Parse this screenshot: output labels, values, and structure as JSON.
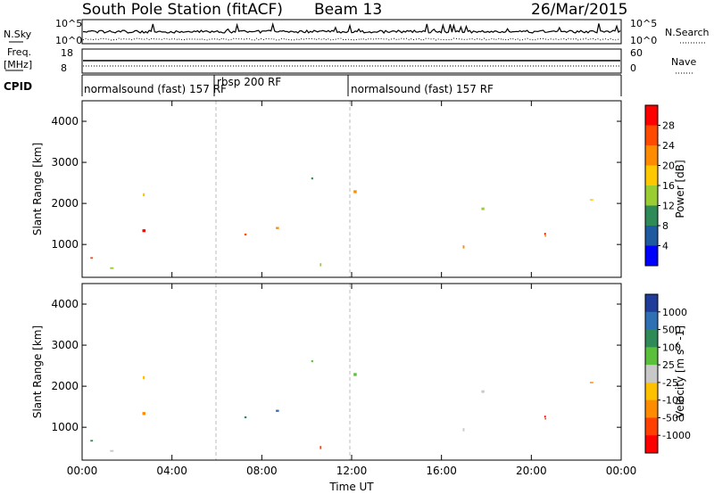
{
  "header": {
    "title": "South Pole Station (fitACF)",
    "beam": "Beam 13",
    "date": "26/Mar/2015"
  },
  "strip_nsky": {
    "label": "N.Sky",
    "ticks_left": [
      "10^5",
      "10^0"
    ],
    "right_label": "N.Search",
    "ticks_right": [
      "10^5",
      "10^0"
    ]
  },
  "strip_freq": {
    "label_line1": "Freq.",
    "label_line2": "[MHz]",
    "ticks_left": [
      "18",
      "8"
    ],
    "right_label": "Nave",
    "ticks_right": [
      "60",
      "0"
    ]
  },
  "cpid": {
    "label": "CPID",
    "segments": [
      "normalsound (fast) 157 RF",
      "rbsp 200 RF",
      "normalsound (fast) 157 RF"
    ]
  },
  "chart_data": [
    {
      "type": "heatmap",
      "panel": "power",
      "ylabel": "Slant Range [km]",
      "y_ticks": [
        "1000",
        "2000",
        "3000",
        "4000"
      ],
      "ylim": [
        200,
        4500
      ],
      "x_ticks": [
        "00:00",
        "04:00",
        "08:00",
        "12:00",
        "16:00",
        "20:00",
        "00:00"
      ],
      "xlim_hours": [
        0,
        24
      ],
      "colorbar": {
        "label": "Power [dB]",
        "ticks": [
          "28",
          "24",
          "20",
          "16",
          "12",
          "8",
          "4"
        ],
        "colors": [
          "#ff0000",
          "#ff4a00",
          "#ff8c00",
          "#ffc800",
          "#9acd32",
          "#2e8b57",
          "#1e5aa0",
          "#0000ff"
        ]
      }
    },
    {
      "type": "heatmap",
      "panel": "velocity",
      "ylabel": "Slant Range [km]",
      "y_ticks": [
        "1000",
        "2000",
        "3000",
        "4000"
      ],
      "ylim": [
        200,
        4500
      ],
      "x_ticks": [
        "00:00",
        "04:00",
        "08:00",
        "12:00",
        "16:00",
        "20:00",
        "00:00"
      ],
      "xlabel": "Time UT",
      "xlim_hours": [
        0,
        24
      ],
      "colorbar": {
        "label": "Velocity [m s^-1]",
        "ticks": [
          "1000",
          "500",
          "100",
          "25",
          "-25",
          "-100",
          "-500",
          "-1000"
        ],
        "colors": [
          "#1f3c9b",
          "#2f6fb4",
          "#2e8b57",
          "#5abf3a",
          "#c8c8c8",
          "#ffc000",
          "#ff8c00",
          "#ff4000",
          "#ff0000"
        ]
      }
    }
  ],
  "colors": {
    "axis": "#000000",
    "dashed": "#bbbbbb"
  }
}
